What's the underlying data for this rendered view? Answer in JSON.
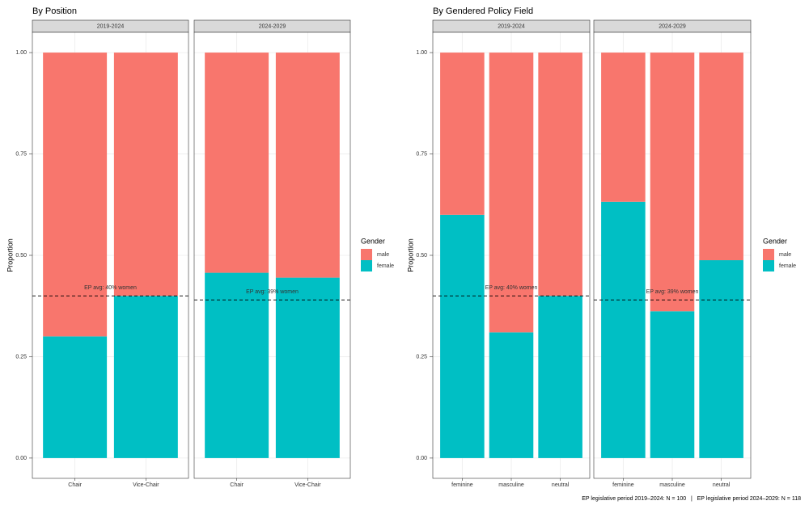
{
  "chart_data": [
    {
      "type": "bar",
      "title": "By Position",
      "ylabel": "Proportion",
      "legend_title": "Gender",
      "ylim": [
        -0.05,
        1.05
      ],
      "yticks": [
        {
          "value": 0,
          "label": "0.00"
        },
        {
          "value": 0.25,
          "label": "0.25"
        },
        {
          "value": 0.5,
          "label": "0.50"
        },
        {
          "value": 0.75,
          "label": "0.75"
        },
        {
          "value": 1,
          "label": "1.00"
        }
      ],
      "series": [
        {
          "name": "male",
          "color": "#f8766d"
        },
        {
          "name": "female",
          "color": "#00bfc4"
        }
      ],
      "facets": [
        {
          "label": "2019-2024",
          "categories": [
            "Chair",
            "Vice-Chair"
          ],
          "series": [
            {
              "values": [
                0.7,
                0.6
              ]
            },
            {
              "values": [
                0.3,
                0.4
              ]
            }
          ],
          "reference": {
            "value": 0.4,
            "label": "EP avg: 40% women"
          }
        },
        {
          "label": "2024-2029",
          "categories": [
            "Chair",
            "Vice-Chair"
          ],
          "series": [
            {
              "values": [
                0.543,
                0.555
              ]
            },
            {
              "values": [
                0.457,
                0.445
              ]
            }
          ],
          "reference": {
            "value": 0.39,
            "label": "EP avg: 39% women"
          }
        }
      ]
    },
    {
      "type": "bar",
      "title": "By Gendered Policy Field",
      "ylabel": "Proportion",
      "legend_title": "Gender",
      "ylim": [
        -0.05,
        1.05
      ],
      "yticks": [
        {
          "value": 0,
          "label": "0.00"
        },
        {
          "value": 0.25,
          "label": "0.25"
        },
        {
          "value": 0.5,
          "label": "0.50"
        },
        {
          "value": 0.75,
          "label": "0.75"
        },
        {
          "value": 1,
          "label": "1.00"
        }
      ],
      "series": [
        {
          "name": "male",
          "color": "#f8766d"
        },
        {
          "name": "female",
          "color": "#00bfc4"
        }
      ],
      "facets": [
        {
          "label": "2019-2024",
          "categories": [
            "feminine",
            "masculine",
            "neutral"
          ],
          "series": [
            {
              "values": [
                0.4,
                0.69,
                0.6
              ]
            },
            {
              "values": [
                0.6,
                0.31,
                0.4
              ]
            }
          ],
          "reference": {
            "value": 0.4,
            "label": "EP avg: 40% women"
          }
        },
        {
          "label": "2024-2029",
          "categories": [
            "feminine",
            "masculine",
            "neutral"
          ],
          "series": [
            {
              "values": [
                0.368,
                0.638,
                0.512
              ]
            },
            {
              "values": [
                0.632,
                0.362,
                0.488
              ]
            }
          ],
          "reference": {
            "value": 0.39,
            "label": "EP avg: 39% women"
          }
        }
      ]
    }
  ],
  "caption": "EP legislative period 2019–2024: N = 100   |   EP legislative period 2024–2029: N = 118"
}
